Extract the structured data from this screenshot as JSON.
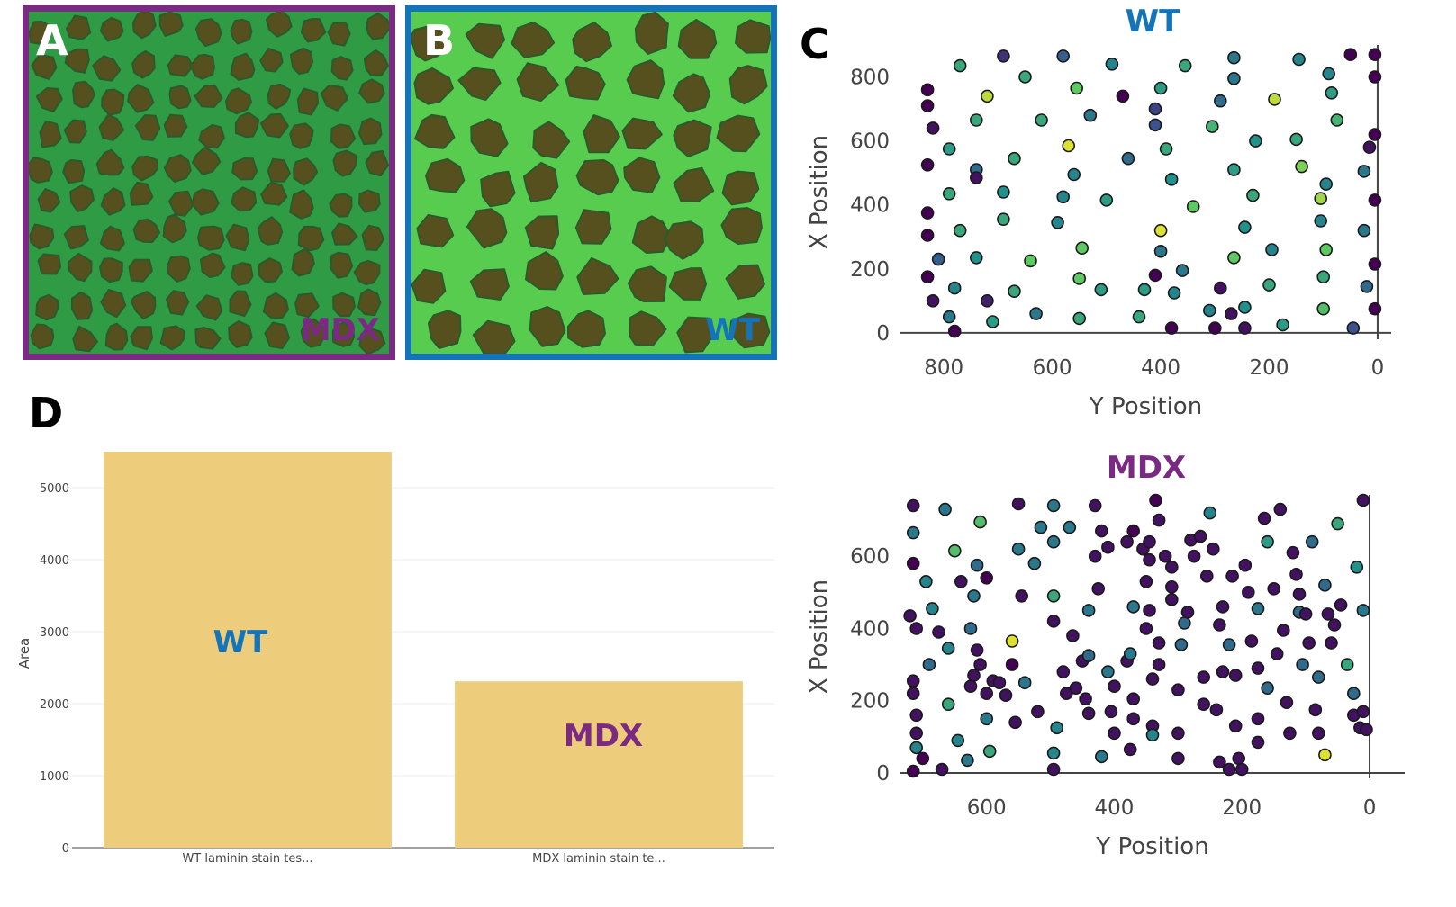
{
  "panels": {
    "a": {
      "letter": "A",
      "tag": "MDX",
      "border_color": "#7B2A84"
    },
    "b": {
      "letter": "B",
      "tag": "WT",
      "border_color": "#1474BA"
    },
    "c": {
      "letter": "C"
    },
    "d": {
      "letter": "D"
    }
  },
  "colors": {
    "wt": "#1474BA",
    "mdx": "#7B2A84",
    "bar": "#EDCC7C",
    "cell_fill": "#56501F",
    "membrane": "#4FC04E"
  },
  "chart_data": [
    {
      "id": "wt-scatter",
      "type": "scatter",
      "title": "WT",
      "xlabel": "Y Position",
      "ylabel": "X Position",
      "x_reversed": true,
      "xlim": [
        880,
        -25
      ],
      "ylim": [
        -20,
        900
      ],
      "xticks": [
        800,
        600,
        400,
        200,
        0
      ],
      "yticks": [
        0,
        200,
        400,
        600,
        800
      ],
      "points": [
        [
          830,
          760,
          0.0
        ],
        [
          830,
          710,
          0.0
        ],
        [
          820,
          640,
          0.05
        ],
        [
          830,
          525,
          0.0
        ],
        [
          830,
          375,
          0.0
        ],
        [
          830,
          305,
          0.0
        ],
        [
          830,
          175,
          0.0
        ],
        [
          820,
          100,
          0.05
        ],
        [
          810,
          230,
          0.3
        ],
        [
          790,
          50,
          0.4
        ],
        [
          780,
          5,
          0.0
        ],
        [
          780,
          140,
          0.45
        ],
        [
          790,
          435,
          0.6
        ],
        [
          790,
          575,
          0.55
        ],
        [
          770,
          320,
          0.6
        ],
        [
          770,
          835,
          0.6
        ],
        [
          740,
          510,
          0.35
        ],
        [
          740,
          485,
          0.05
        ],
        [
          740,
          235,
          0.5
        ],
        [
          740,
          665,
          0.6
        ],
        [
          720,
          740,
          0.9
        ],
        [
          720,
          100,
          0.1
        ],
        [
          710,
          35,
          0.55
        ],
        [
          690,
          440,
          0.5
        ],
        [
          690,
          355,
          0.6
        ],
        [
          690,
          865,
          0.15
        ],
        [
          670,
          130,
          0.6
        ],
        [
          670,
          545,
          0.6
        ],
        [
          650,
          800,
          0.6
        ],
        [
          640,
          225,
          0.75
        ],
        [
          630,
          60,
          0.4
        ],
        [
          620,
          665,
          0.6
        ],
        [
          590,
          345,
          0.45
        ],
        [
          580,
          865,
          0.3
        ],
        [
          580,
          425,
          0.45
        ],
        [
          570,
          585,
          0.95
        ],
        [
          560,
          495,
          0.45
        ],
        [
          555,
          765,
          0.75
        ],
        [
          550,
          170,
          0.75
        ],
        [
          550,
          45,
          0.6
        ],
        [
          545,
          265,
          0.75
        ],
        [
          530,
          680,
          0.4
        ],
        [
          510,
          135,
          0.55
        ],
        [
          500,
          415,
          0.55
        ],
        [
          490,
          840,
          0.45
        ],
        [
          470,
          740,
          0.0
        ],
        [
          460,
          545,
          0.35
        ],
        [
          440,
          50,
          0.6
        ],
        [
          430,
          135,
          0.55
        ],
        [
          400,
          320,
          0.95
        ],
        [
          400,
          255,
          0.4
        ],
        [
          410,
          180,
          0.0
        ],
        [
          410,
          700,
          0.2
        ],
        [
          410,
          650,
          0.25
        ],
        [
          400,
          765,
          0.55
        ],
        [
          390,
          575,
          0.6
        ],
        [
          380,
          480,
          0.5
        ],
        [
          375,
          125,
          0.45
        ],
        [
          380,
          15,
          0.0
        ],
        [
          360,
          195,
          0.4
        ],
        [
          355,
          835,
          0.6
        ],
        [
          340,
          395,
          0.75
        ],
        [
          310,
          70,
          0.45
        ],
        [
          305,
          645,
          0.65
        ],
        [
          300,
          15,
          0.0
        ],
        [
          290,
          725,
          0.35
        ],
        [
          290,
          140,
          0.05
        ],
        [
          270,
          60,
          0.05
        ],
        [
          265,
          235,
          0.75
        ],
        [
          265,
          510,
          0.55
        ],
        [
          265,
          795,
          0.4
        ],
        [
          265,
          860,
          0.4
        ],
        [
          245,
          330,
          0.5
        ],
        [
          245,
          80,
          0.5
        ],
        [
          245,
          15,
          0.05
        ],
        [
          230,
          430,
          0.6
        ],
        [
          225,
          600,
          0.5
        ],
        [
          200,
          150,
          0.6
        ],
        [
          195,
          260,
          0.45
        ],
        [
          190,
          730,
          0.9
        ],
        [
          175,
          25,
          0.55
        ],
        [
          150,
          605,
          0.6
        ],
        [
          145,
          855,
          0.45
        ],
        [
          140,
          520,
          0.8
        ],
        [
          105,
          420,
          0.85
        ],
        [
          105,
          350,
          0.45
        ],
        [
          100,
          75,
          0.7
        ],
        [
          100,
          175,
          0.6
        ],
        [
          95,
          260,
          0.75
        ],
        [
          95,
          465,
          0.45
        ],
        [
          75,
          665,
          0.65
        ],
        [
          90,
          810,
          0.45
        ],
        [
          85,
          750,
          0.55
        ],
        [
          50,
          870,
          0.0
        ],
        [
          45,
          15,
          0.25
        ],
        [
          25,
          505,
          0.4
        ],
        [
          25,
          320,
          0.4
        ],
        [
          20,
          145,
          0.35
        ],
        [
          15,
          580,
          0.05
        ],
        [
          5,
          620,
          0.0
        ],
        [
          5,
          800,
          0.0
        ],
        [
          5,
          870,
          0.0
        ],
        [
          5,
          415,
          0.0
        ],
        [
          5,
          215,
          0.0
        ],
        [
          5,
          75,
          0.0
        ]
      ]
    },
    {
      "id": "mdx-scatter",
      "type": "scatter",
      "title": "MDX",
      "xlabel": "Y Position",
      "ylabel": "X Position",
      "x_reversed": true,
      "xlim": [
        735,
        -55
      ],
      "ylim": [
        -15,
        770
      ],
      "xticks": [
        600,
        400,
        200,
        0
      ],
      "yticks": [
        0,
        200,
        400,
        600
      ],
      "points": [
        [
          715,
          740,
          0.05
        ],
        [
          715,
          665,
          0.4
        ],
        [
          715,
          580,
          0.0
        ],
        [
          720,
          435,
          0.05
        ],
        [
          710,
          400,
          0.05
        ],
        [
          715,
          255,
          0.05
        ],
        [
          715,
          220,
          0.05
        ],
        [
          710,
          160,
          0.05
        ],
        [
          710,
          110,
          0.05
        ],
        [
          710,
          70,
          0.45
        ],
        [
          715,
          5,
          0.0
        ],
        [
          695,
          530,
          0.45
        ],
        [
          690,
          300,
          0.35
        ],
        [
          685,
          455,
          0.45
        ],
        [
          675,
          390,
          0.05
        ],
        [
          670,
          10,
          0.05
        ],
        [
          665,
          730,
          0.4
        ],
        [
          660,
          190,
          0.6
        ],
        [
          660,
          345,
          0.45
        ],
        [
          650,
          615,
          0.7
        ],
        [
          645,
          90,
          0.45
        ],
        [
          640,
          530,
          0.05
        ],
        [
          630,
          35,
          0.4
        ],
        [
          625,
          400,
          0.35
        ],
        [
          625,
          240,
          0.05
        ],
        [
          620,
          270,
          0.05
        ],
        [
          620,
          490,
          0.4
        ],
        [
          615,
          340,
          0.05
        ],
        [
          610,
          300,
          0.05
        ],
        [
          600,
          220,
          0.05
        ],
        [
          590,
          255,
          0.05
        ],
        [
          600,
          150,
          0.4
        ],
        [
          600,
          540,
          0.0
        ],
        [
          615,
          575,
          0.35
        ],
        [
          610,
          695,
          0.7
        ],
        [
          595,
          60,
          0.6
        ],
        [
          580,
          250,
          0.05
        ],
        [
          570,
          215,
          0.05
        ],
        [
          560,
          365,
          0.95
        ],
        [
          560,
          300,
          0.0
        ],
        [
          555,
          140,
          0.05
        ],
        [
          550,
          745,
          0.05
        ],
        [
          550,
          620,
          0.4
        ],
        [
          545,
          490,
          0.05
        ],
        [
          540,
          250,
          0.4
        ],
        [
          525,
          580,
          0.4
        ],
        [
          520,
          170,
          0.05
        ],
        [
          515,
          680,
          0.4
        ],
        [
          495,
          740,
          0.4
        ],
        [
          495,
          640,
          0.4
        ],
        [
          495,
          490,
          0.6
        ],
        [
          495,
          420,
          0.05
        ],
        [
          490,
          125,
          0.45
        ],
        [
          495,
          55,
          0.45
        ],
        [
          495,
          10,
          0.05
        ],
        [
          480,
          280,
          0.05
        ],
        [
          475,
          220,
          0.05
        ],
        [
          470,
          680,
          0.4
        ],
        [
          465,
          380,
          0.05
        ],
        [
          460,
          235,
          0.05
        ],
        [
          450,
          310,
          0.05
        ],
        [
          445,
          205,
          0.05
        ],
        [
          440,
          165,
          0.05
        ],
        [
          440,
          450,
          0.4
        ],
        [
          440,
          325,
          0.35
        ],
        [
          430,
          600,
          0.05
        ],
        [
          430,
          740,
          0.05
        ],
        [
          425,
          510,
          0.05
        ],
        [
          420,
          45,
          0.4
        ],
        [
          420,
          670,
          0.05
        ],
        [
          410,
          625,
          0.05
        ],
        [
          405,
          170,
          0.05
        ],
        [
          410,
          280,
          0.4
        ],
        [
          400,
          240,
          0.05
        ],
        [
          400,
          110,
          0.05
        ],
        [
          380,
          310,
          0.05
        ],
        [
          370,
          205,
          0.05
        ],
        [
          370,
          150,
          0.05
        ],
        [
          375,
          65,
          0.05
        ],
        [
          375,
          330,
          0.4
        ],
        [
          370,
          460,
          0.4
        ],
        [
          380,
          640,
          0.05
        ],
        [
          370,
          670,
          0.0
        ],
        [
          355,
          620,
          0.05
        ],
        [
          350,
          400,
          0.05
        ],
        [
          350,
          530,
          0.05
        ],
        [
          345,
          590,
          0.05
        ],
        [
          345,
          640,
          0.05
        ],
        [
          345,
          450,
          0.05
        ],
        [
          340,
          260,
          0.05
        ],
        [
          340,
          130,
          0.05
        ],
        [
          340,
          105,
          0.45
        ],
        [
          335,
          755,
          0.0
        ],
        [
          330,
          700,
          0.05
        ],
        [
          330,
          360,
          0.05
        ],
        [
          330,
          300,
          0.05
        ],
        [
          320,
          600,
          0.05
        ],
        [
          310,
          570,
          0.05
        ],
        [
          310,
          515,
          0.05
        ],
        [
          310,
          480,
          0.05
        ],
        [
          300,
          230,
          0.05
        ],
        [
          300,
          110,
          0.05
        ],
        [
          300,
          40,
          0.05
        ],
        [
          295,
          355,
          0.35
        ],
        [
          290,
          415,
          0.35
        ],
        [
          285,
          445,
          0.05
        ],
        [
          280,
          645,
          0.05
        ],
        [
          275,
          600,
          0.05
        ],
        [
          265,
          655,
          0.05
        ],
        [
          260,
          265,
          0.05
        ],
        [
          260,
          190,
          0.05
        ],
        [
          255,
          545,
          0.05
        ],
        [
          250,
          720,
          0.45
        ],
        [
          245,
          620,
          0.05
        ],
        [
          240,
          175,
          0.05
        ],
        [
          235,
          410,
          0.05
        ],
        [
          235,
          30,
          0.05
        ],
        [
          230,
          280,
          0.05
        ],
        [
          230,
          460,
          0.05
        ],
        [
          220,
          355,
          0.35
        ],
        [
          215,
          545,
          0.05
        ],
        [
          210,
          270,
          0.05
        ],
        [
          210,
          130,
          0.05
        ],
        [
          205,
          40,
          0.05
        ],
        [
          195,
          575,
          0.05
        ],
        [
          190,
          500,
          0.05
        ],
        [
          185,
          365,
          0.05
        ],
        [
          175,
          455,
          0.4
        ],
        [
          175,
          290,
          0.05
        ],
        [
          175,
          150,
          0.05
        ],
        [
          175,
          85,
          0.05
        ],
        [
          165,
          705,
          0.05
        ],
        [
          160,
          640,
          0.55
        ],
        [
          160,
          235,
          0.35
        ],
        [
          150,
          510,
          0.05
        ],
        [
          145,
          330,
          0.05
        ],
        [
          140,
          730,
          0.05
        ],
        [
          135,
          395,
          0.05
        ],
        [
          130,
          195,
          0.05
        ],
        [
          125,
          110,
          0.05
        ],
        [
          120,
          610,
          0.05
        ],
        [
          115,
          550,
          0.05
        ],
        [
          110,
          495,
          0.05
        ],
        [
          110,
          445,
          0.35
        ],
        [
          105,
          300,
          0.35
        ],
        [
          100,
          440,
          0.05
        ],
        [
          95,
          360,
          0.05
        ],
        [
          90,
          640,
          0.35
        ],
        [
          85,
          175,
          0.05
        ],
        [
          80,
          265,
          0.35
        ],
        [
          80,
          110,
          0.05
        ],
        [
          70,
          520,
          0.35
        ],
        [
          65,
          440,
          0.05
        ],
        [
          60,
          360,
          0.05
        ],
        [
          55,
          410,
          0.05
        ],
        [
          50,
          690,
          0.6
        ],
        [
          45,
          465,
          0.05
        ],
        [
          35,
          300,
          0.6
        ],
        [
          25,
          220,
          0.35
        ],
        [
          25,
          160,
          0.05
        ],
        [
          20,
          570,
          0.5
        ],
        [
          15,
          125,
          0.05
        ],
        [
          10,
          170,
          0.05
        ],
        [
          10,
          450,
          0.4
        ],
        [
          10,
          755,
          0.05
        ],
        [
          5,
          120,
          0.05
        ],
        [
          70,
          50,
          0.95
        ],
        [
          700,
          40,
          0.0
        ],
        [
          200,
          10,
          0.05
        ],
        [
          220,
          10,
          0.05
        ]
      ]
    },
    {
      "id": "area-bar",
      "type": "bar",
      "ylabel": "Area",
      "ylim": [
        0,
        5650
      ],
      "yticks": [
        0,
        1000,
        2000,
        3000,
        4000,
        5000
      ],
      "categories": [
        "WT laminin stain tes...",
        "MDX laminin stain te..."
      ],
      "values": [
        5500,
        2310
      ],
      "annotations": [
        "WT",
        "MDX"
      ]
    }
  ]
}
